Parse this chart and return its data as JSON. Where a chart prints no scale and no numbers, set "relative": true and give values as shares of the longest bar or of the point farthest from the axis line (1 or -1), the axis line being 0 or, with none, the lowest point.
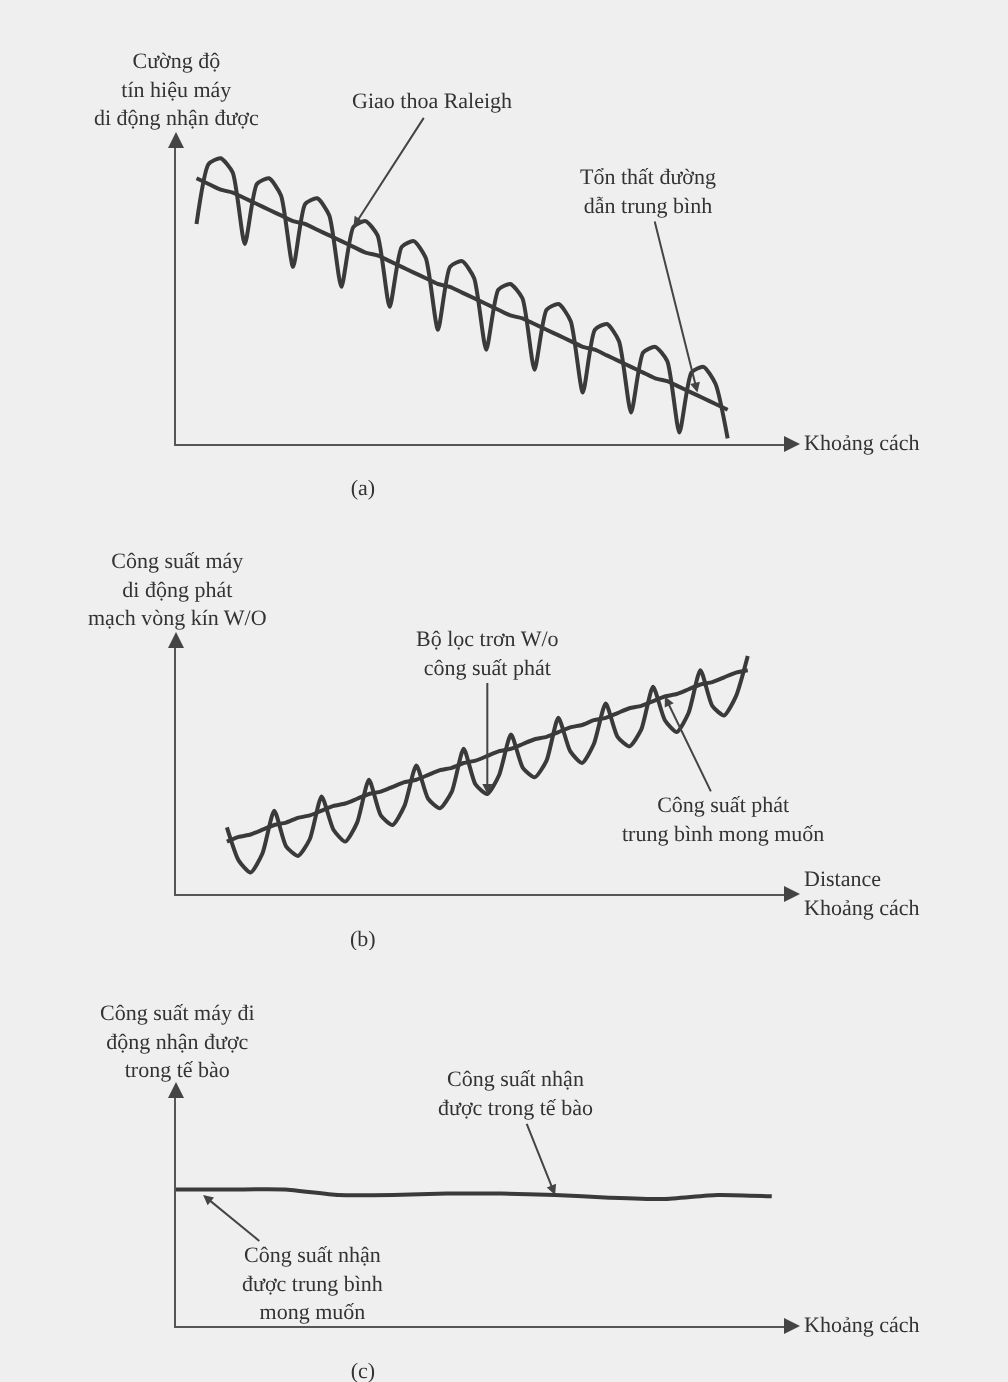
{
  "chart_data": [
    {
      "type": "line",
      "title": "(a)",
      "ylabel": "Cường độ\ntín hiệu máy\ndi động nhận được",
      "xlabel": "Khoảng cách",
      "relative": true,
      "categories": [
        null,
        null,
        null,
        null,
        null,
        null,
        null,
        null,
        null,
        null,
        null,
        null,
        null,
        null,
        null,
        null,
        null,
        null,
        null,
        null,
        null,
        null,
        null,
        null,
        null,
        null,
        null,
        null,
        null,
        null,
        null,
        null,
        null,
        null,
        null,
        null,
        null,
        null,
        null,
        null,
        null,
        null,
        null,
        null,
        null
      ],
      "series": [
        {
          "color": "#3a3a3a",
          "values": [
            0.77,
            0.98,
            1.0,
            0.95,
            0.7,
            0.91,
            0.93,
            0.87,
            0.62,
            0.84,
            0.86,
            0.8,
            0.55,
            0.76,
            0.78,
            0.73,
            0.48,
            0.69,
            0.71,
            0.65,
            0.4,
            0.62,
            0.64,
            0.58,
            0.33,
            0.54,
            0.56,
            0.51,
            0.26,
            0.47,
            0.49,
            0.43,
            0.18,
            0.4,
            0.42,
            0.36,
            0.11,
            0.32,
            0.34,
            0.29,
            0.04,
            0.25,
            0.27,
            0.21,
            0.02
          ]
        },
        {
          "color": "#3a3a3a",
          "values": [
            0.93,
            0.91,
            0.89,
            0.88,
            0.86,
            0.84,
            0.82,
            0.8,
            0.78,
            0.77,
            0.75,
            0.73,
            0.71,
            0.69,
            0.67,
            0.66,
            0.64,
            0.62,
            0.6,
            0.58,
            0.56,
            0.55,
            0.53,
            0.51,
            0.49,
            0.47,
            0.45,
            0.44,
            0.42,
            0.4,
            0.38,
            0.36,
            0.34,
            0.33,
            0.31,
            0.29,
            0.27,
            0.25,
            0.23,
            0.22,
            0.2,
            0.18,
            0.16,
            0.14,
            0.12
          ]
        }
      ],
      "annotations": [
        "Giao thoa Raleigh",
        "Tổn thất đường\ndẫn trung bình"
      ]
    },
    {
      "type": "line",
      "title": "(b)",
      "ylabel": "Công suất máy\ndi động phát\nmạch vòng kín W/O",
      "xlabel": "Distance\nKhoảng cách",
      "relative": true,
      "categories": [
        null,
        null,
        null,
        null,
        null,
        null,
        null,
        null,
        null,
        null,
        null,
        null,
        null,
        null,
        null,
        null,
        null,
        null,
        null,
        null,
        null,
        null,
        null,
        null,
        null,
        null,
        null,
        null,
        null,
        null,
        null,
        null,
        null,
        null,
        null,
        null,
        null,
        null,
        null,
        null,
        null,
        null,
        null,
        null,
        null
      ],
      "series": [
        {
          "color": "#3a3a3a",
          "values": [
            0.28,
            0.14,
            0.09,
            0.17,
            0.35,
            0.2,
            0.16,
            0.23,
            0.41,
            0.27,
            0.22,
            0.3,
            0.48,
            0.33,
            0.29,
            0.37,
            0.54,
            0.4,
            0.36,
            0.43,
            0.61,
            0.46,
            0.42,
            0.5,
            0.67,
            0.53,
            0.49,
            0.56,
            0.74,
            0.6,
            0.55,
            0.63,
            0.8,
            0.66,
            0.62,
            0.69,
            0.87,
            0.73,
            0.68,
            0.76,
            0.94,
            0.79,
            0.75,
            0.83,
            1.0
          ]
        },
        {
          "color": "#3a3a3a",
          "values": [
            0.22,
            0.24,
            0.25,
            0.27,
            0.29,
            0.3,
            0.32,
            0.33,
            0.35,
            0.37,
            0.38,
            0.4,
            0.42,
            0.43,
            0.45,
            0.47,
            0.48,
            0.5,
            0.52,
            0.53,
            0.55,
            0.56,
            0.58,
            0.6,
            0.61,
            0.63,
            0.65,
            0.66,
            0.68,
            0.7,
            0.71,
            0.73,
            0.74,
            0.76,
            0.78,
            0.79,
            0.81,
            0.83,
            0.84,
            0.86,
            0.88,
            0.89,
            0.91,
            0.93,
            0.94
          ]
        }
      ],
      "annotations": [
        "Bộ lọc trơn W/o\ncông suất phát",
        "Công suất phát\ntrung bình mong muốn"
      ]
    },
    {
      "type": "line",
      "title": "(c)",
      "ylabel": "Công suất máy đi\nđộng nhận được\ntrong tế bào",
      "xlabel": "Khoảng cách",
      "relative": true,
      "categories": [
        null,
        null,
        null,
        null,
        null,
        null,
        null,
        null,
        null,
        null,
        null,
        null
      ],
      "series": [
        {
          "color": "#3a3a3a",
          "values": [
            1.0,
            1.0,
            1.0,
            0.96,
            0.96,
            0.97,
            0.97,
            0.96,
            0.94,
            0.93,
            0.96,
            0.95
          ]
        }
      ],
      "annotations": [
        "Công suất nhận\nđược trong tế bào",
        "Công suất nhận\nđược trung bình\nmong muốn"
      ]
    }
  ]
}
